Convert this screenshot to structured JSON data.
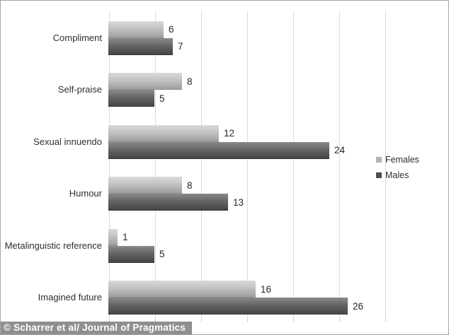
{
  "figure": {
    "caption": "© Scharrer et al/ Journal of Pragmatics"
  },
  "chart_data": {
    "type": "bar",
    "orientation": "horizontal",
    "title": "",
    "xlabel": "",
    "ylabel": "",
    "categories": [
      "Compliment",
      "Self-praise",
      "Sexual innuendo",
      "Humour",
      "Metalinguistic reference",
      "Imagined future"
    ],
    "series": [
      {
        "name": "Females",
        "values": [
          6,
          8,
          12,
          8,
          1,
          16
        ],
        "color": "#b2b2b2"
      },
      {
        "name": "Males",
        "values": [
          7,
          5,
          24,
          13,
          5,
          26
        ],
        "color": "#4d4d4d"
      }
    ],
    "xlim": [
      0,
      30
    ],
    "grid_interval": 5,
    "grid": true,
    "gridline_color": "#cfe0ea",
    "legend_position": "right",
    "value_labels": true
  }
}
